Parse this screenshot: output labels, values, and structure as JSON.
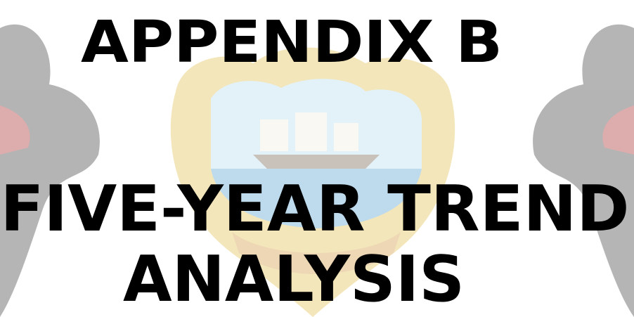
{
  "header": {
    "title": "APPENDIX B"
  },
  "body": {
    "heading_lines": [
      "FIVE-YEAR TREND",
      "ANALYSIS"
    ]
  }
}
